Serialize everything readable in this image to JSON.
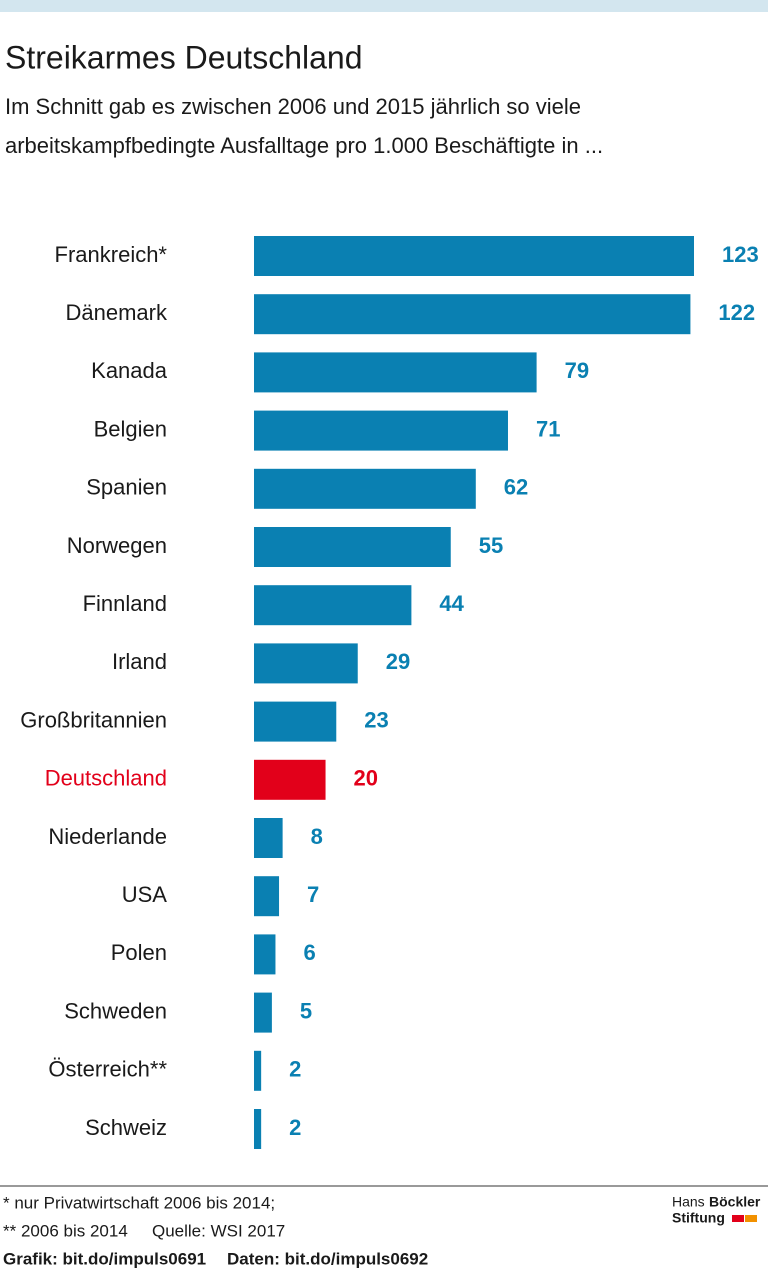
{
  "chart_data": {
    "type": "bar",
    "orientation": "horizontal",
    "title": "Streikarmes Deutschland",
    "subtitle": [
      "Im Schnitt gab es zwischen 2006 und 2015 jährlich so viele",
      "arbeitskampfbedingte Ausfalltage pro 1.000 Beschäftigte in ..."
    ],
    "categories": [
      "Frankreich*",
      "Dänemark",
      "Kanada",
      "Belgien",
      "Spanien",
      "Norwegen",
      "Finnland",
      "Irland",
      "Großbritannien",
      "Deutschland",
      "Niederlande",
      "USA",
      "Polen",
      "Schweden",
      "Österreich**",
      "Schweiz"
    ],
    "values": [
      123,
      122,
      79,
      71,
      62,
      55,
      44,
      29,
      23,
      20,
      8,
      7,
      6,
      5,
      2,
      2
    ],
    "colors": [
      "#0a80b2",
      "#0a80b2",
      "#0a80b2",
      "#0a80b2",
      "#0a80b2",
      "#0a80b2",
      "#0a80b2",
      "#0a80b2",
      "#0a80b2",
      "#e2001a",
      "#0a80b2",
      "#0a80b2",
      "#0a80b2",
      "#0a80b2",
      "#0a80b2",
      "#0a80b2"
    ],
    "footnotes": [
      "* nur Privatwirtschaft 2006 bis 2014;",
      "** 2006 bis 2014"
    ],
    "source": "Quelle: WSI 2017",
    "credits": [
      "Grafik: bit.do/impuls0691",
      "Daten: bit.do/impuls0692"
    ],
    "logo": [
      "Hans",
      "Böckler",
      "Stiftung"
    ]
  }
}
